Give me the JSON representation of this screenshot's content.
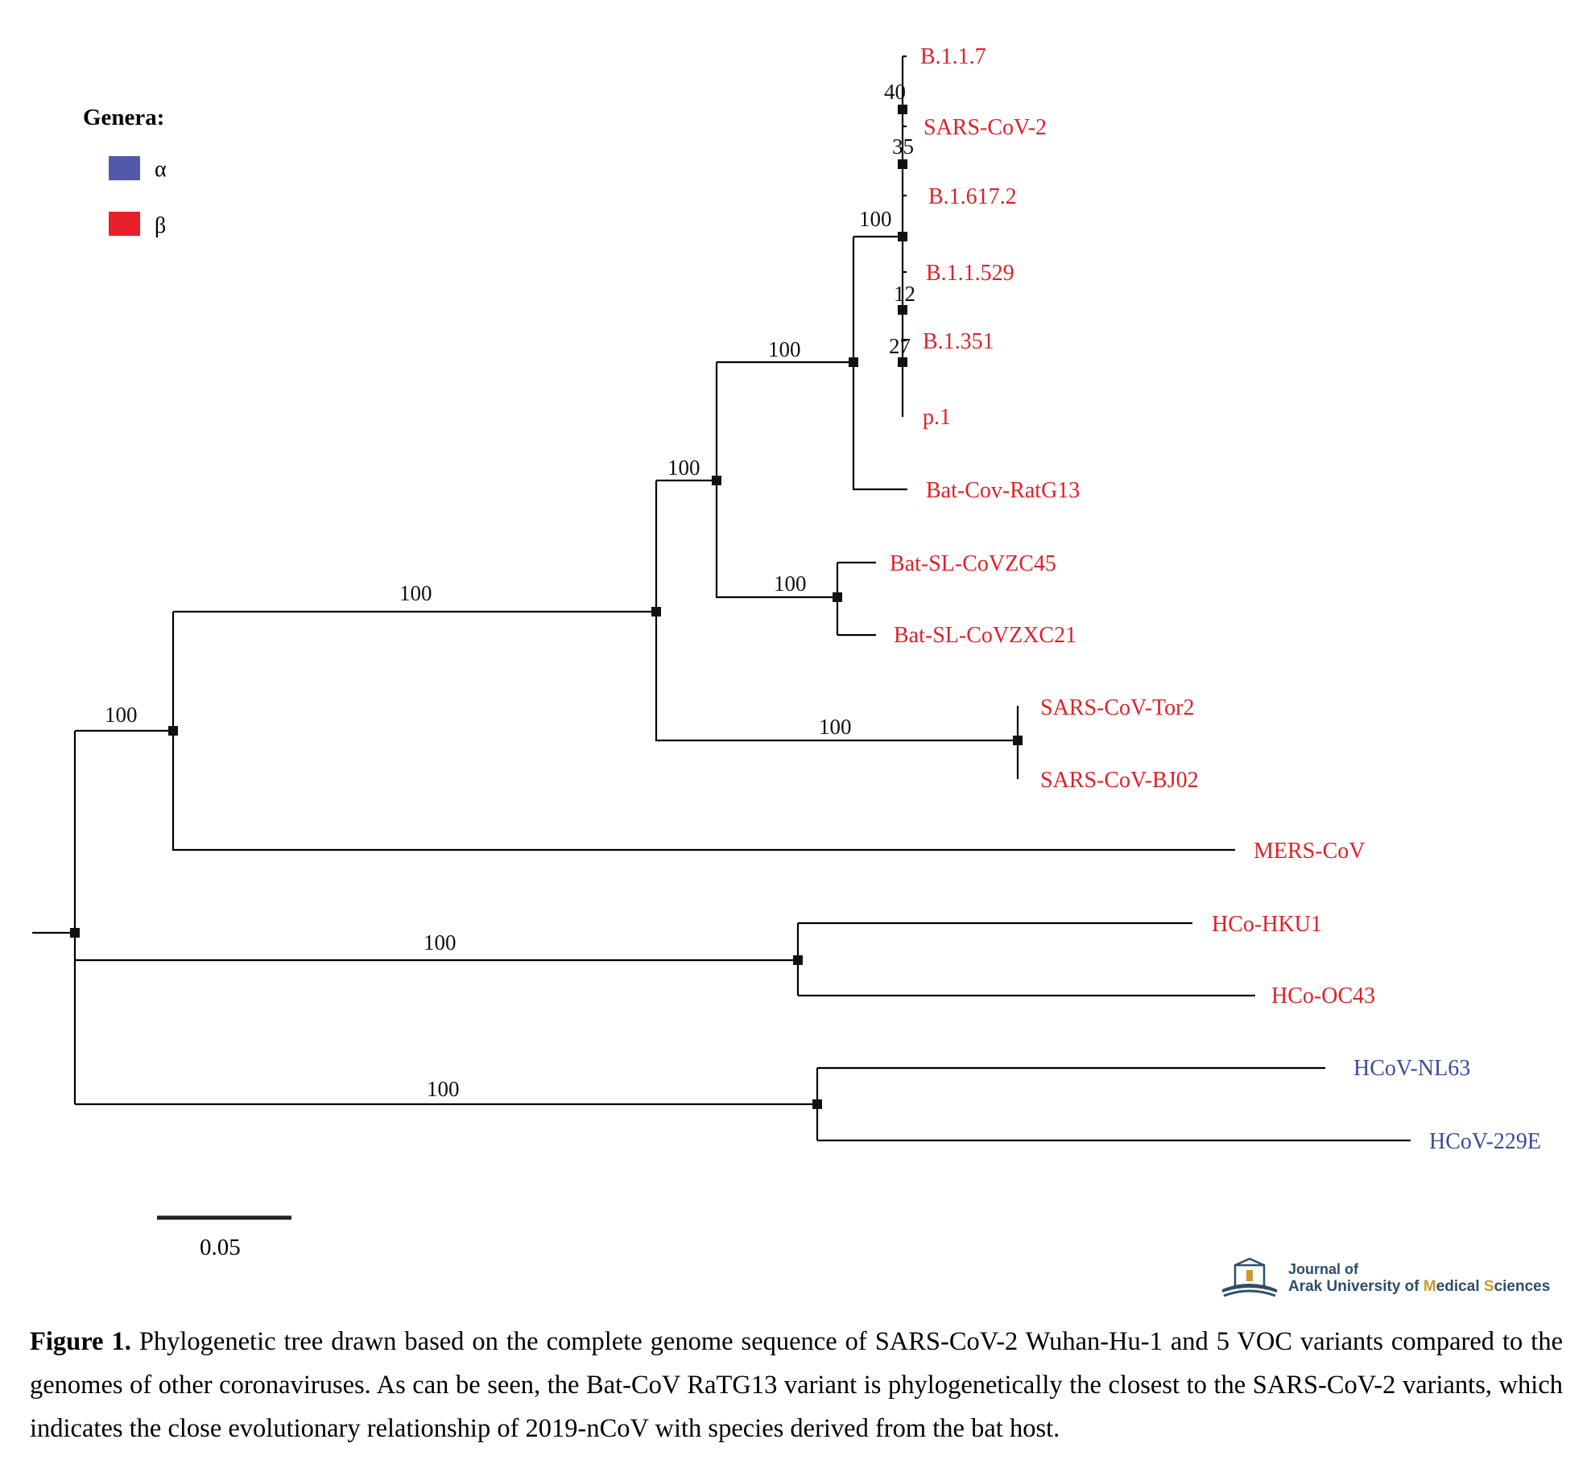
{
  "legend": {
    "title": "Genera:",
    "items": [
      {
        "symbol": "α",
        "color": "#5159a8"
      },
      {
        "symbol": "β",
        "color": "#e8202a"
      }
    ]
  },
  "colors": {
    "alpha": "#3c4a9c",
    "beta": "#e31f26",
    "branch": "#000000"
  },
  "tree": {
    "tips": [
      {
        "id": "B117",
        "label": "B.1.1.7",
        "genus": "beta"
      },
      {
        "id": "SC2",
        "label": "SARS-CoV-2",
        "genus": "beta"
      },
      {
        "id": "B16172",
        "label": "B.1.617.2",
        "genus": "beta"
      },
      {
        "id": "B11529",
        "label": "B.1.1.529",
        "genus": "beta"
      },
      {
        "id": "B1351",
        "label": "B.1.351",
        "genus": "beta"
      },
      {
        "id": "P1",
        "label": "p.1",
        "genus": "beta"
      },
      {
        "id": "RATG13",
        "label": "Bat-Cov-RatG13",
        "genus": "beta"
      },
      {
        "id": "ZC45",
        "label": "Bat-SL-CoVZC45",
        "genus": "beta"
      },
      {
        "id": "ZXC21",
        "label": "Bat-SL-CoVZXC21",
        "genus": "beta"
      },
      {
        "id": "TOR2",
        "label": "SARS-CoV-Tor2",
        "genus": "beta"
      },
      {
        "id": "BJ02",
        "label": "SARS-CoV-BJ02",
        "genus": "beta"
      },
      {
        "id": "MERS",
        "label": "MERS-CoV",
        "genus": "beta"
      },
      {
        "id": "HKU1",
        "label": "HCo-HKU1",
        "genus": "beta"
      },
      {
        "id": "OC43",
        "label": "HCo-OC43",
        "genus": "beta"
      },
      {
        "id": "NL63",
        "label": "HCoV-NL63",
        "genus": "alpha"
      },
      {
        "id": "229E",
        "label": "HCoV-229E",
        "genus": "alpha"
      }
    ],
    "bootstrap": [
      {
        "node": "n40",
        "value": "40"
      },
      {
        "node": "n35",
        "value": "35"
      },
      {
        "node": "n100a",
        "value": "100"
      },
      {
        "node": "n12",
        "value": "12"
      },
      {
        "node": "n27",
        "value": "27"
      },
      {
        "node": "n100b",
        "value": "100"
      },
      {
        "node": "n100c",
        "value": "100"
      },
      {
        "node": "n100d",
        "value": "100"
      },
      {
        "node": "n100e",
        "value": "100"
      },
      {
        "node": "n100f",
        "value": "100"
      },
      {
        "node": "n100g",
        "value": "100"
      },
      {
        "node": "n100h",
        "value": "100"
      },
      {
        "node": "n100i",
        "value": "100"
      }
    ]
  },
  "scale_bar": {
    "value": 0.05,
    "label": "0.05"
  },
  "journal": {
    "line1": "Journal of",
    "line2_a": "Arak University of ",
    "line2_b": "M",
    "line2_c": "edical ",
    "line2_d": "S",
    "line2_e": "ciences"
  },
  "caption": {
    "lead": "Figure 1.",
    "text": " Phylogenetic tree drawn based on the complete genome sequence of SARS-CoV-2 Wuhan-Hu-1 and 5 VOC variants compared to the genomes of other coronaviruses. As can be seen, the Bat-CoV RaTG13 variant is phylogenetically the closest to the SARS-CoV-2 variants, which indicates the close evolutionary relationship of 2019-nCoV with species derived from the bat host."
  }
}
